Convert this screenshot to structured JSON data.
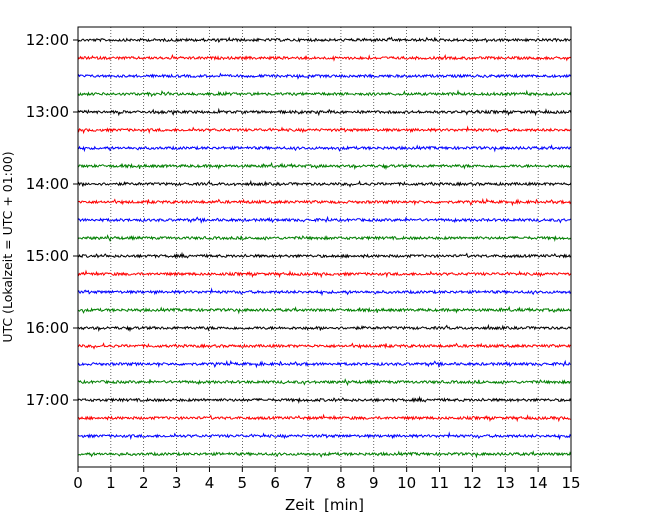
{
  "chart_data": {
    "type": "line",
    "title": "",
    "xlabel": "Zeit  [min]",
    "ylabel": "UTC (Lokalzeit = UTC + 01:00)",
    "xlim": [
      0,
      15
    ],
    "x_ticks": [
      0,
      1,
      2,
      3,
      4,
      5,
      6,
      7,
      8,
      9,
      10,
      11,
      12,
      13,
      14,
      15
    ],
    "y_tick_labels": [
      "12:00",
      "13:00",
      "14:00",
      "15:00",
      "16:00",
      "17:00"
    ],
    "grid": "vertical dotted",
    "series_colors": [
      "#000000",
      "#ff0000",
      "#0000ff",
      "#007f00"
    ],
    "traces": [
      {
        "start": "12:00",
        "color": "#000000"
      },
      {
        "start": "12:15",
        "color": "#ff0000"
      },
      {
        "start": "12:30",
        "color": "#0000ff"
      },
      {
        "start": "12:45",
        "color": "#007f00"
      },
      {
        "start": "13:00",
        "color": "#000000"
      },
      {
        "start": "13:15",
        "color": "#ff0000"
      },
      {
        "start": "13:30",
        "color": "#0000ff"
      },
      {
        "start": "13:45",
        "color": "#007f00"
      },
      {
        "start": "14:00",
        "color": "#000000"
      },
      {
        "start": "14:15",
        "color": "#ff0000"
      },
      {
        "start": "14:30",
        "color": "#0000ff"
      },
      {
        "start": "14:45",
        "color": "#007f00"
      },
      {
        "start": "15:00",
        "color": "#000000"
      },
      {
        "start": "15:15",
        "color": "#ff0000"
      },
      {
        "start": "15:30",
        "color": "#0000ff"
      },
      {
        "start": "15:45",
        "color": "#007f00"
      },
      {
        "start": "16:00",
        "color": "#000000"
      },
      {
        "start": "16:15",
        "color": "#ff0000"
      },
      {
        "start": "16:30",
        "color": "#0000ff"
      },
      {
        "start": "16:45",
        "color": "#007f00"
      },
      {
        "start": "17:00",
        "color": "#000000"
      },
      {
        "start": "17:15",
        "color": "#ff0000"
      },
      {
        "start": "17:30",
        "color": "#0000ff"
      },
      {
        "start": "17:45",
        "color": "#007f00"
      }
    ]
  }
}
